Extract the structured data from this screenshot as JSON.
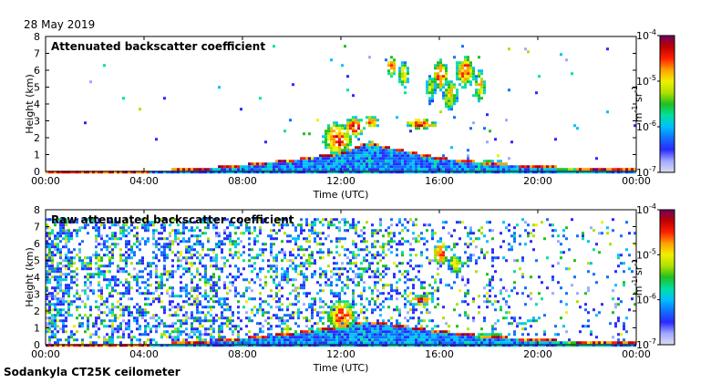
{
  "date_label": "28 May 2019",
  "footer_label": "Sodankyla CT25K ceilometer",
  "colormap": [
    "#dcdcf2",
    "#a0a8ff",
    "#2a2aff",
    "#1070ff",
    "#00c0ff",
    "#00e0a0",
    "#20c020",
    "#b0e000",
    "#f0f000",
    "#ffa000",
    "#ff2000",
    "#c00000",
    "#700060"
  ],
  "chart_data": [
    {
      "type": "heatmap",
      "title": "Attenuated backscatter coefficient",
      "xlabel": "Time (UTC)",
      "ylabel": "Height (km)",
      "x_ticks": [
        "00:00",
        "04:00",
        "08:00",
        "12:00",
        "16:00",
        "20:00",
        "00:00"
      ],
      "x_range_hours": [
        0,
        24
      ],
      "y_ticks": [
        "0",
        "1",
        "2",
        "3",
        "4",
        "5",
        "6",
        "7",
        "8"
      ],
      "ylim": [
        0,
        8
      ],
      "colorbar": {
        "ticks": [
          {
            "base": "10",
            "exp": "-4"
          },
          {
            "base": "10",
            "exp": "-5"
          },
          {
            "base": "10",
            "exp": "-6"
          },
          {
            "base": "10",
            "exp": "-7"
          }
        ],
        "label_base": [
          "m",
          "sr"
        ],
        "label_exp": [
          "-1",
          "-1"
        ],
        "scale": "log",
        "range": [
          1e-07,
          0.0001
        ]
      },
      "features": {
        "noise_ceiling_km": 7.5,
        "background_noise": [
          0.004,
          0.003,
          0.002,
          0.002,
          0.002,
          0.002,
          0.002,
          0.003,
          0.004,
          0.005,
          0.006,
          0.008,
          0.01,
          0.012,
          0.012,
          0.014,
          0.018,
          0.02,
          0.016,
          0.01,
          0.006,
          0.004,
          0.004,
          0.004
        ],
        "boundary_layer": [
          {
            "t": 0.0,
            "h": 0.15
          },
          {
            "t": 4.0,
            "h": 0.15
          },
          {
            "t": 6.0,
            "h": 0.25
          },
          {
            "t": 8.0,
            "h": 0.5
          },
          {
            "t": 10.0,
            "h": 0.8
          },
          {
            "t": 12.0,
            "h": 1.2
          },
          {
            "t": 13.0,
            "h": 1.8
          },
          {
            "t": 16.0,
            "h": 0.9
          },
          {
            "t": 18.0,
            "h": 0.6
          },
          {
            "t": 20.0,
            "h": 0.4
          },
          {
            "t": 22.0,
            "h": 0.3
          },
          {
            "t": 24.0,
            "h": 0.2
          }
        ],
        "clouds": [
          {
            "t": 11.8,
            "h": 2.0,
            "dt": 0.6,
            "dh": 1.0,
            "level": 0.85
          },
          {
            "t": 12.5,
            "h": 2.7,
            "dt": 0.4,
            "dh": 0.6,
            "level": 0.9
          },
          {
            "t": 13.2,
            "h": 3.0,
            "dt": 0.3,
            "dh": 0.4,
            "level": 0.8
          },
          {
            "t": 14.0,
            "h": 6.3,
            "dt": 0.2,
            "dh": 0.6,
            "level": 0.85
          },
          {
            "t": 14.5,
            "h": 5.8,
            "dt": 0.2,
            "dh": 0.8,
            "level": 0.7
          },
          {
            "t": 15.2,
            "h": 2.9,
            "dt": 0.6,
            "dh": 0.3,
            "level": 0.9
          },
          {
            "t": 15.6,
            "h": 5.0,
            "dt": 0.2,
            "dh": 0.8,
            "level": 0.6
          },
          {
            "t": 16.0,
            "h": 5.8,
            "dt": 0.3,
            "dh": 0.9,
            "level": 0.85
          },
          {
            "t": 16.4,
            "h": 4.6,
            "dt": 0.3,
            "dh": 0.9,
            "level": 0.7
          },
          {
            "t": 17.0,
            "h": 6.0,
            "dt": 0.4,
            "dh": 1.0,
            "level": 0.8
          },
          {
            "t": 17.6,
            "h": 5.2,
            "dt": 0.2,
            "dh": 1.0,
            "level": 0.75
          },
          {
            "t": 18.0,
            "h": 0.6,
            "dt": 1.0,
            "dh": 0.1,
            "level": 0.9
          },
          {
            "t": 21.6,
            "h": 0.15,
            "dt": 1.3,
            "dh": 0.15,
            "level": 0.6
          }
        ]
      }
    },
    {
      "type": "heatmap",
      "title": "Raw attenuated backscatter coefficient",
      "xlabel": "Time (UTC)",
      "ylabel": "Height (km)",
      "x_ticks": [
        "00:00",
        "04:00",
        "08:00",
        "12:00",
        "16:00",
        "20:00",
        "00:00"
      ],
      "x_range_hours": [
        0,
        24
      ],
      "y_ticks": [
        "0",
        "1",
        "2",
        "3",
        "4",
        "5",
        "6",
        "7",
        "8"
      ],
      "ylim": [
        0,
        8
      ],
      "colorbar": {
        "ticks": [
          {
            "base": "10",
            "exp": "-4"
          },
          {
            "base": "10",
            "exp": "-5"
          },
          {
            "base": "10",
            "exp": "-6"
          },
          {
            "base": "10",
            "exp": "-7"
          }
        ],
        "label_base": [
          "m",
          "sr"
        ],
        "label_exp": [
          "-1",
          "-1"
        ],
        "scale": "log",
        "range": [
          1e-07,
          0.0001
        ]
      },
      "features": {
        "noise_ceiling_km": 7.5,
        "background_noise": [
          0.65,
          0.35,
          0.45,
          0.4,
          0.4,
          0.4,
          0.4,
          0.35,
          0.3,
          0.35,
          0.4,
          0.35,
          0.35,
          0.3,
          0.3,
          0.25,
          0.12,
          0.15,
          0.2,
          0.15,
          0.1,
          0.08,
          0.08,
          0.1
        ],
        "boundary_layer": [
          {
            "t": 0.0,
            "h": 0.15
          },
          {
            "t": 4.0,
            "h": 0.15
          },
          {
            "t": 6.0,
            "h": 0.25
          },
          {
            "t": 8.0,
            "h": 0.5
          },
          {
            "t": 10.0,
            "h": 0.8
          },
          {
            "t": 12.0,
            "h": 1.2
          },
          {
            "t": 13.0,
            "h": 1.5
          },
          {
            "t": 16.0,
            "h": 0.9
          },
          {
            "t": 18.0,
            "h": 0.6
          },
          {
            "t": 20.0,
            "h": 0.4
          },
          {
            "t": 22.0,
            "h": 0.3
          },
          {
            "t": 24.0,
            "h": 0.2
          }
        ],
        "clouds": [
          {
            "t": 12.0,
            "h": 1.8,
            "dt": 0.6,
            "dh": 0.9,
            "level": 0.85
          },
          {
            "t": 15.2,
            "h": 2.7,
            "dt": 0.5,
            "dh": 0.3,
            "level": 0.9
          },
          {
            "t": 16.0,
            "h": 5.5,
            "dt": 0.3,
            "dh": 0.8,
            "level": 0.85
          },
          {
            "t": 16.6,
            "h": 4.8,
            "dt": 0.3,
            "dh": 0.6,
            "level": 0.7
          },
          {
            "t": 18.0,
            "h": 0.6,
            "dt": 1.0,
            "dh": 0.1,
            "level": 0.9
          },
          {
            "t": 21.6,
            "h": 0.15,
            "dt": 1.3,
            "dh": 0.15,
            "level": 0.6
          }
        ]
      }
    }
  ]
}
